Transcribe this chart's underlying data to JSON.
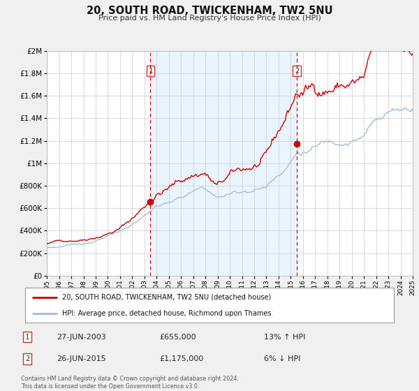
{
  "title": "20, SOUTH ROAD, TWICKENHAM, TW2 5NU",
  "subtitle": "Price paid vs. HM Land Registry's House Price Index (HPI)",
  "bg_color": "#f0f0f0",
  "plot_bg_color": "#ffffff",
  "shade_color": "#ddeeff",
  "grid_color": "#cccccc",
  "red_line_color": "#cc0000",
  "blue_line_color": "#99bbdd",
  "marker1_date": 2003.49,
  "marker2_date": 2015.49,
  "marker1_value": 655000,
  "marker2_value": 1175000,
  "vline_color": "#cc0000",
  "legend1": "20, SOUTH ROAD, TWICKENHAM, TW2 5NU (detached house)",
  "legend2": "HPI: Average price, detached house, Richmond upon Thames",
  "annotation1_date": "27-JUN-2003",
  "annotation1_price": "£655,000",
  "annotation1_hpi": "13% ↑ HPI",
  "annotation2_date": "26-JUN-2015",
  "annotation2_price": "£1,175,000",
  "annotation2_hpi": "6% ↓ HPI",
  "footer": "Contains HM Land Registry data © Crown copyright and database right 2024.\nThis data is licensed under the Open Government Licence v3.0.",
  "xmin": 1995,
  "xmax": 2025,
  "ymin": 0,
  "ymax": 2000000,
  "yticks": [
    0,
    200000,
    400000,
    600000,
    800000,
    1000000,
    1200000,
    1400000,
    1600000,
    1800000,
    2000000
  ],
  "ytick_labels": [
    "£0",
    "£200K",
    "£400K",
    "£600K",
    "£800K",
    "£1M",
    "£1.2M",
    "£1.4M",
    "£1.6M",
    "£1.8M",
    "£2M"
  ]
}
